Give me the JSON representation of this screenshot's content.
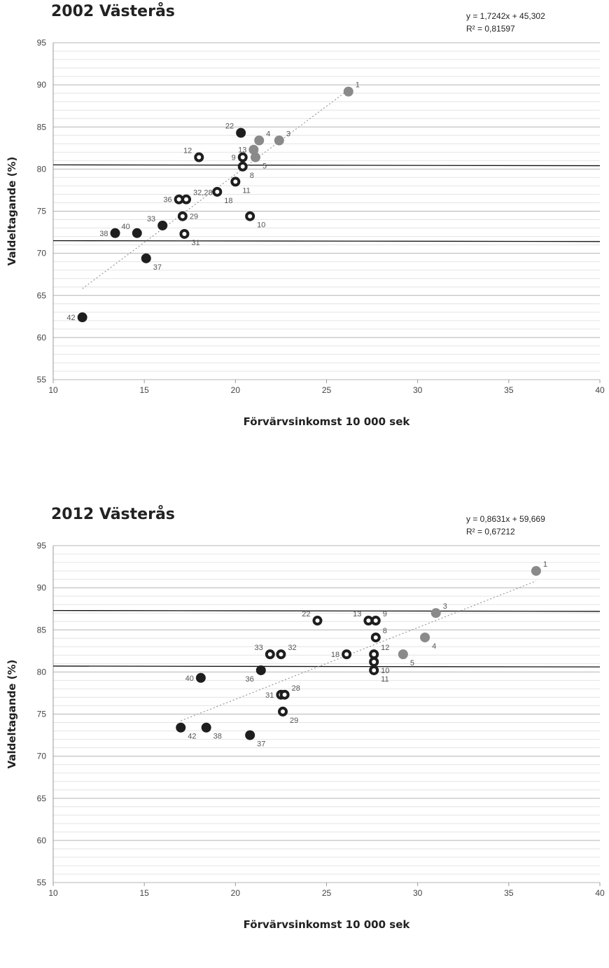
{
  "chart_data": [
    {
      "type": "scatter",
      "title": "2002 Västerås",
      "equation": "y = 1,7242x + 45,302",
      "r2": "R² = 0,81597",
      "xlabel": "Förvärvsinkomst 10 000 sek",
      "ylabel": "Valdeltagande (%)",
      "xlim": [
        10,
        40
      ],
      "ylim": [
        55,
        95
      ],
      "xticks": [
        "10",
        "15",
        "20",
        "25",
        "30",
        "35",
        "40"
      ],
      "yticks": [
        "55",
        "60",
        "65",
        "70",
        "75",
        "80",
        "85",
        "90",
        "95"
      ],
      "gridlines": true,
      "trendline": {
        "x": [
          11.6,
          26.2
        ],
        "y": [
          65.8,
          89.4
        ],
        "style": "dotted"
      },
      "reference_lines": [
        {
          "x": [
            10,
            40
          ],
          "y": [
            80.5,
            80.4
          ]
        },
        {
          "x": [
            10,
            40
          ],
          "y": [
            71.5,
            71.4
          ]
        }
      ],
      "colors": {
        "gray": "#8a8a8a",
        "black": "#1e1e1e",
        "ring": "#1e1e1e"
      },
      "points": [
        {
          "label": "1",
          "x": 26.2,
          "y": 89.2,
          "style": "gray"
        },
        {
          "label": "4",
          "x": 21.3,
          "y": 83.4,
          "style": "gray"
        },
        {
          "label": "3",
          "x": 22.4,
          "y": 83.4,
          "style": "gray"
        },
        {
          "label": "13",
          "x": 21.0,
          "y": 82.3,
          "style": "gray"
        },
        {
          "label": "5",
          "x": 21.1,
          "y": 81.4,
          "style": "gray"
        },
        {
          "label": "22",
          "x": 20.3,
          "y": 84.3,
          "style": "black"
        },
        {
          "label": "12",
          "x": 18.0,
          "y": 81.4,
          "style": "ring"
        },
        {
          "label": "9",
          "x": 20.4,
          "y": 81.4,
          "style": "ring"
        },
        {
          "label": "8",
          "x": 20.4,
          "y": 80.3,
          "style": "ring"
        },
        {
          "label": "11",
          "x": 20.0,
          "y": 78.5,
          "style": "ring"
        },
        {
          "label": "18",
          "x": 19.0,
          "y": 77.3,
          "style": "ring"
        },
        {
          "label": "36",
          "x": 16.9,
          "y": 76.4,
          "style": "ring"
        },
        {
          "label": "32,28",
          "x": 17.3,
          "y": 76.4,
          "style": "ring"
        },
        {
          "label": "29",
          "x": 17.1,
          "y": 74.4,
          "style": "ring"
        },
        {
          "label": "10",
          "x": 20.8,
          "y": 74.4,
          "style": "ring"
        },
        {
          "label": "31",
          "x": 17.2,
          "y": 72.3,
          "style": "ring"
        },
        {
          "label": "33",
          "x": 16.0,
          "y": 73.3,
          "style": "black"
        },
        {
          "label": "38",
          "x": 13.4,
          "y": 72.4,
          "style": "black"
        },
        {
          "label": "40",
          "x": 14.6,
          "y": 72.4,
          "style": "black"
        },
        {
          "label": "37",
          "x": 15.1,
          "y": 69.4,
          "style": "black"
        },
        {
          "label": "42",
          "x": 11.6,
          "y": 62.4,
          "style": "black"
        }
      ]
    },
    {
      "type": "scatter",
      "title": "2012 Västerås",
      "equation": "y = 0,8631x + 59,669",
      "r2": "R² = 0,67212",
      "xlabel": "Förvärvsinkomst 10 000 sek",
      "ylabel": "Valdeltagande (%)",
      "xlim": [
        10,
        40
      ],
      "ylim": [
        55,
        95
      ],
      "xticks": [
        "10",
        "15",
        "20",
        "25",
        "30",
        "35",
        "40"
      ],
      "yticks": [
        "55",
        "60",
        "65",
        "70",
        "75",
        "80",
        "85",
        "90",
        "95"
      ],
      "gridlines": true,
      "trendline": {
        "x": [
          17.0,
          36.5
        ],
        "y": [
          74.2,
          90.8
        ],
        "style": "dotted"
      },
      "reference_lines": [
        {
          "x": [
            10,
            40
          ],
          "y": [
            87.3,
            87.2
          ]
        },
        {
          "x": [
            10,
            40
          ],
          "y": [
            80.7,
            80.6
          ]
        }
      ],
      "colors": {
        "gray": "#8a8a8a",
        "black": "#1e1e1e",
        "ring": "#1e1e1e"
      },
      "points": [
        {
          "label": "1",
          "x": 36.5,
          "y": 92.0,
          "style": "gray"
        },
        {
          "label": "3",
          "x": 31.0,
          "y": 87.0,
          "style": "gray"
        },
        {
          "label": "4",
          "x": 30.4,
          "y": 84.1,
          "style": "gray"
        },
        {
          "label": "5",
          "x": 29.2,
          "y": 82.1,
          "style": "gray"
        },
        {
          "label": "22",
          "x": 24.5,
          "y": 86.1,
          "style": "ring"
        },
        {
          "label": "13",
          "x": 27.3,
          "y": 86.1,
          "style": "ring"
        },
        {
          "label": "9",
          "x": 27.7,
          "y": 86.1,
          "style": "ring"
        },
        {
          "label": "8",
          "x": 27.7,
          "y": 84.1,
          "style": "ring"
        },
        {
          "label": "18",
          "x": 26.1,
          "y": 82.1,
          "style": "ring"
        },
        {
          "label": "12",
          "x": 27.6,
          "y": 82.1,
          "style": "ring"
        },
        {
          "label": "10",
          "x": 27.6,
          "y": 81.2,
          "style": "ring"
        },
        {
          "label": "11",
          "x": 27.6,
          "y": 80.2,
          "style": "ring"
        },
        {
          "label": "33",
          "x": 21.9,
          "y": 82.1,
          "style": "ring"
        },
        {
          "label": "32",
          "x": 22.5,
          "y": 82.1,
          "style": "ring"
        },
        {
          "label": "36",
          "x": 21.4,
          "y": 80.2,
          "style": "black"
        },
        {
          "label": "40",
          "x": 18.1,
          "y": 79.3,
          "style": "black"
        },
        {
          "label": "31",
          "x": 22.5,
          "y": 77.3,
          "style": "ring"
        },
        {
          "label": "28",
          "x": 22.7,
          "y": 77.3,
          "style": "ring"
        },
        {
          "label": "29",
          "x": 22.6,
          "y": 75.3,
          "style": "ring"
        },
        {
          "label": "42",
          "x": 17.0,
          "y": 73.4,
          "style": "black"
        },
        {
          "label": "38",
          "x": 18.4,
          "y": 73.4,
          "style": "black"
        },
        {
          "label": "37",
          "x": 20.8,
          "y": 72.5,
          "style": "black"
        }
      ]
    }
  ]
}
